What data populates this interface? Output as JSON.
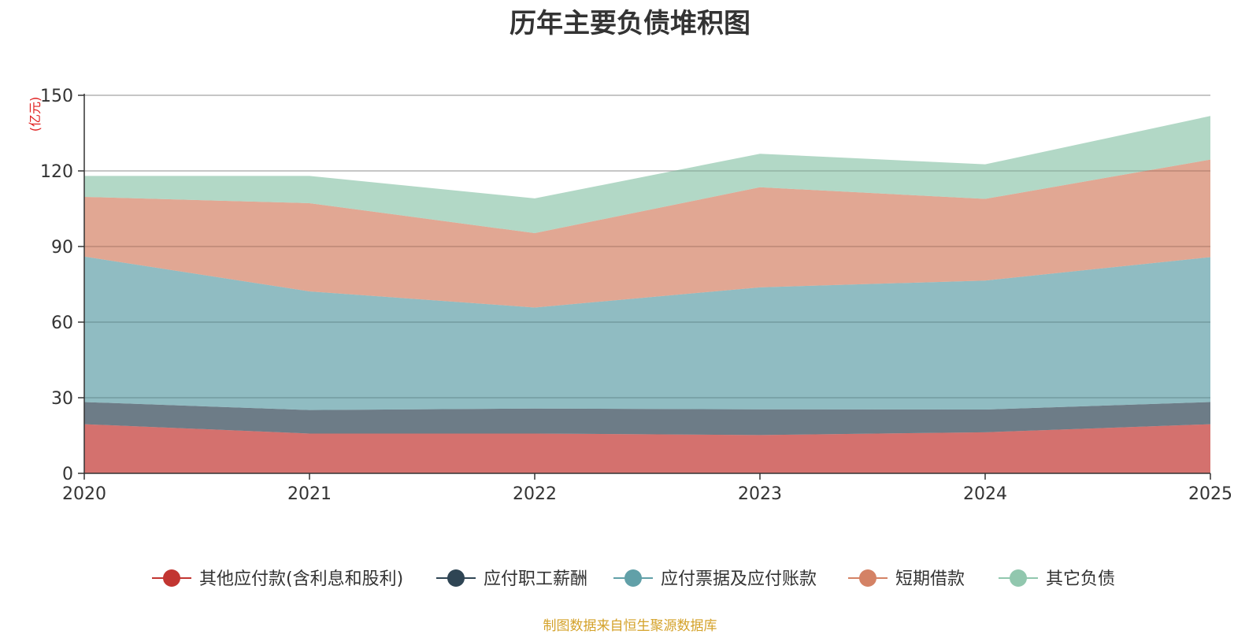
{
  "chart_data": {
    "type": "area",
    "stacked": true,
    "title": "历年主要负债堆积图",
    "ylabel": "(亿元)",
    "xlabel": "",
    "x": [
      "2020",
      "2021",
      "2022",
      "2023",
      "2024",
      "2025"
    ],
    "ylim": [
      0,
      150
    ],
    "yticks": [
      0,
      30,
      60,
      90,
      120,
      150
    ],
    "grid": true,
    "legend_position": "bottom",
    "series": [
      {
        "name": "其他应付款(含利息和股利)",
        "color": "#c23531",
        "values": [
          19.5,
          15.8,
          15.8,
          15.2,
          16.3,
          19.5
        ]
      },
      {
        "name": "应付职工薪酬",
        "color": "#2f4554",
        "values": [
          8.8,
          9.3,
          9.9,
          10.2,
          9.0,
          8.8
        ]
      },
      {
        "name": "应付票据及应付账款",
        "color": "#61a0a8",
        "values": [
          57.7,
          47.1,
          40.1,
          48.4,
          51.2,
          57.5
        ]
      },
      {
        "name": "短期借款",
        "color": "#d48265",
        "values": [
          23.7,
          35.0,
          29.5,
          39.7,
          32.4,
          38.7
        ]
      },
      {
        "name": "其它负债",
        "color": "#91c7ae",
        "values": [
          8.3,
          10.8,
          13.8,
          13.3,
          13.7,
          17.3
        ]
      }
    ]
  },
  "source_note": "制图数据来自恒生聚源数据库"
}
